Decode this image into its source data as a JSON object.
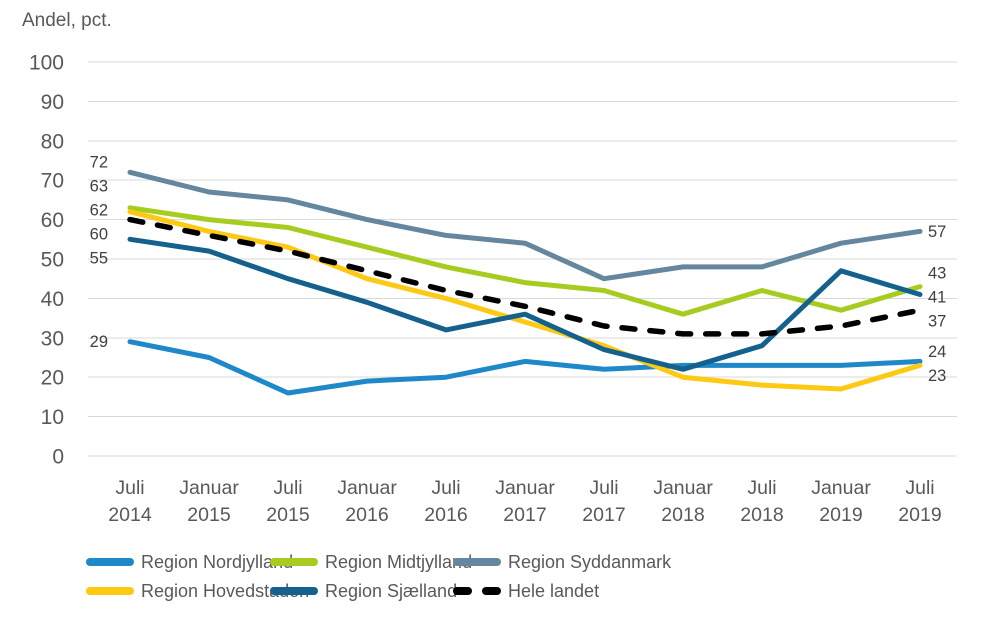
{
  "chart_data": {
    "type": "line",
    "ylabel": "Andel, pct.",
    "title": "",
    "categories": [
      "Juli 2014",
      "Januar 2015",
      "Juli 2015",
      "Januar 2016",
      "Juli 2016",
      "Januar 2017",
      "Juli 2017",
      "Januar 2018",
      "Juli 2018",
      "Januar 2019",
      "Juli 2019"
    ],
    "series": [
      {
        "name": "Region Nordjylland",
        "color": "#1f88c9",
        "dash": false,
        "values": [
          29,
          25,
          16,
          19,
          20,
          24,
          22,
          23,
          23,
          23,
          24
        ]
      },
      {
        "name": "Region Midtjylland",
        "color": "#a5cc1e",
        "dash": false,
        "values": [
          63,
          60,
          58,
          53,
          48,
          44,
          42,
          36,
          42,
          37,
          43
        ]
      },
      {
        "name": "Region Syddanmark",
        "color": "#64869e",
        "dash": false,
        "values": [
          72,
          67,
          65,
          60,
          56,
          54,
          45,
          48,
          48,
          54,
          57
        ]
      },
      {
        "name": "Region Hovedstaden",
        "color": "#fdc913",
        "dash": false,
        "values": [
          62,
          57,
          53,
          45,
          40,
          34,
          28,
          20,
          18,
          17,
          23
        ]
      },
      {
        "name": "Region Sjælland",
        "color": "#15618e",
        "dash": false,
        "values": [
          55,
          52,
          45,
          39,
          32,
          36,
          27,
          22,
          28,
          47,
          41
        ]
      },
      {
        "name": "Hele landet",
        "color": "#000000",
        "dash": true,
        "values": [
          60,
          56,
          52,
          47,
          42,
          38,
          33,
          31,
          31,
          33,
          37
        ]
      }
    ],
    "start_point_labels": [
      72,
      63,
      62,
      60,
      55,
      29
    ],
    "end_point_labels": [
      57,
      43,
      41,
      37,
      24,
      23
    ],
    "ylim": [
      0,
      100
    ],
    "ytick_step": 10,
    "grid": true,
    "legend_position": "bottom",
    "colors": {
      "axis_text": "#595959",
      "gridline": "#d9d9d9",
      "value_label": "#404040"
    }
  }
}
